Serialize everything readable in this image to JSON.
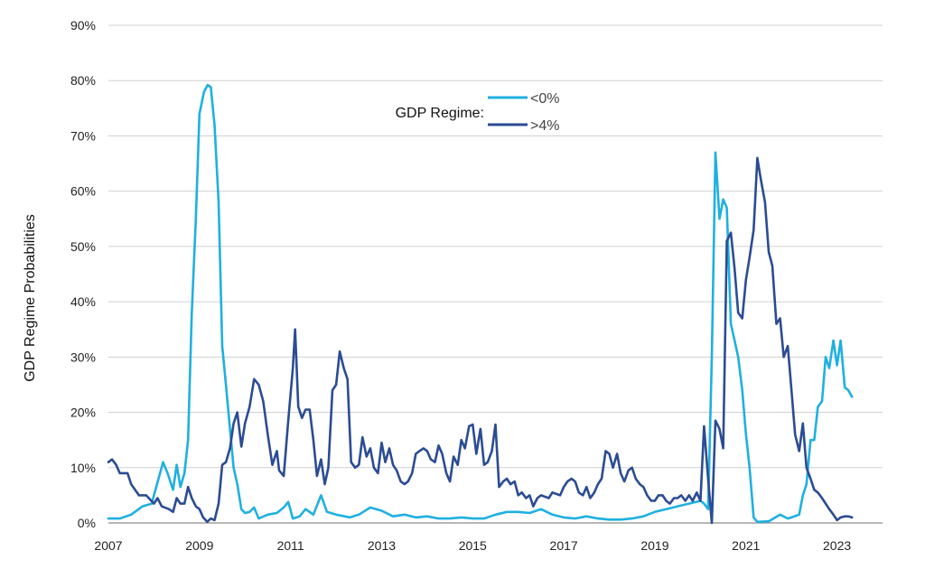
{
  "chart_data": {
    "type": "line",
    "title": "",
    "xlabel": "",
    "ylabel": "GDP Regime Probabilities",
    "xlim": [
      2007,
      2024
    ],
    "ylim": [
      0,
      90
    ],
    "x_ticks": [
      "2007",
      "2009",
      "2011",
      "2013",
      "2015",
      "2017",
      "2019",
      "2021",
      "2023"
    ],
    "y_ticks": [
      "0%",
      "10%",
      "20%",
      "30%",
      "40%",
      "50%",
      "60%",
      "70%",
      "80%",
      "90%"
    ],
    "grid": true,
    "legend": {
      "title": "GDP Regime:",
      "placement": "top-center"
    },
    "series": [
      {
        "name": "<0%",
        "color": "#1fb0e0",
        "points": [
          [
            2007.0,
            0.8
          ],
          [
            2007.25,
            0.8
          ],
          [
            2007.5,
            1.5
          ],
          [
            2007.75,
            3.0
          ],
          [
            2007.95,
            3.5
          ],
          [
            2008.1,
            8.0
          ],
          [
            2008.2,
            11.0
          ],
          [
            2008.3,
            9.0
          ],
          [
            2008.42,
            6.0
          ],
          [
            2008.5,
            10.5
          ],
          [
            2008.58,
            6.5
          ],
          [
            2008.67,
            9.0
          ],
          [
            2008.75,
            15.0
          ],
          [
            2008.83,
            38.0
          ],
          [
            2008.92,
            55.0
          ],
          [
            2009.0,
            74.0
          ],
          [
            2009.1,
            78.0
          ],
          [
            2009.18,
            79.2
          ],
          [
            2009.25,
            78.8
          ],
          [
            2009.33,
            72.0
          ],
          [
            2009.42,
            58.0
          ],
          [
            2009.5,
            32.0
          ],
          [
            2009.58,
            25.0
          ],
          [
            2009.67,
            17.0
          ],
          [
            2009.75,
            10.0
          ],
          [
            2009.83,
            7.0
          ],
          [
            2009.92,
            2.5
          ],
          [
            2010.0,
            1.8
          ],
          [
            2010.1,
            2.0
          ],
          [
            2010.2,
            2.8
          ],
          [
            2010.3,
            0.8
          ],
          [
            2010.5,
            1.5
          ],
          [
            2010.7,
            1.8
          ],
          [
            2010.85,
            2.8
          ],
          [
            2010.95,
            3.8
          ],
          [
            2011.05,
            0.8
          ],
          [
            2011.2,
            1.2
          ],
          [
            2011.33,
            2.5
          ],
          [
            2011.5,
            1.5
          ],
          [
            2011.67,
            5.0
          ],
          [
            2011.8,
            2.0
          ],
          [
            2012.0,
            1.5
          ],
          [
            2012.3,
            1.0
          ],
          [
            2012.5,
            1.5
          ],
          [
            2012.75,
            2.8
          ],
          [
            2013.0,
            2.2
          ],
          [
            2013.25,
            1.2
          ],
          [
            2013.5,
            1.5
          ],
          [
            2013.75,
            1.0
          ],
          [
            2014.0,
            1.2
          ],
          [
            2014.25,
            0.8
          ],
          [
            2014.5,
            0.8
          ],
          [
            2014.75,
            1.0
          ],
          [
            2015.0,
            0.8
          ],
          [
            2015.25,
            0.8
          ],
          [
            2015.5,
            1.5
          ],
          [
            2015.75,
            2.0
          ],
          [
            2016.0,
            2.0
          ],
          [
            2016.25,
            1.8
          ],
          [
            2016.5,
            2.5
          ],
          [
            2016.75,
            1.5
          ],
          [
            2017.0,
            1.0
          ],
          [
            2017.25,
            0.8
          ],
          [
            2017.5,
            1.2
          ],
          [
            2017.75,
            0.8
          ],
          [
            2018.0,
            0.6
          ],
          [
            2018.25,
            0.6
          ],
          [
            2018.5,
            0.8
          ],
          [
            2018.75,
            1.2
          ],
          [
            2019.0,
            2.0
          ],
          [
            2019.25,
            2.5
          ],
          [
            2019.5,
            3.0
          ],
          [
            2019.75,
            3.5
          ],
          [
            2020.0,
            4.0
          ],
          [
            2020.08,
            3.5
          ],
          [
            2020.17,
            2.5
          ],
          [
            2020.25,
            30.0
          ],
          [
            2020.33,
            67.0
          ],
          [
            2020.42,
            55.0
          ],
          [
            2020.5,
            58.5
          ],
          [
            2020.58,
            57.0
          ],
          [
            2020.67,
            36.0
          ],
          [
            2020.75,
            33.0
          ],
          [
            2020.83,
            30.0
          ],
          [
            2020.92,
            24.0
          ],
          [
            2021.0,
            16.0
          ],
          [
            2021.08,
            10.0
          ],
          [
            2021.17,
            1.0
          ],
          [
            2021.25,
            0.2
          ],
          [
            2021.5,
            0.3
          ],
          [
            2021.75,
            1.5
          ],
          [
            2021.92,
            0.8
          ],
          [
            2022.0,
            1.0
          ],
          [
            2022.17,
            1.5
          ],
          [
            2022.25,
            5.0
          ],
          [
            2022.33,
            7.0
          ],
          [
            2022.42,
            15.0
          ],
          [
            2022.5,
            15.0
          ],
          [
            2022.58,
            21.0
          ],
          [
            2022.67,
            22.0
          ],
          [
            2022.75,
            30.0
          ],
          [
            2022.83,
            28.0
          ],
          [
            2022.92,
            33.0
          ],
          [
            2023.0,
            28.5
          ],
          [
            2023.08,
            33.0
          ],
          [
            2023.17,
            24.5
          ],
          [
            2023.25,
            24.0
          ],
          [
            2023.33,
            22.8
          ]
        ]
      },
      {
        "name": ">4%",
        "color": "#2b4c93",
        "points": [
          [
            2007.0,
            11.0
          ],
          [
            2007.08,
            11.5
          ],
          [
            2007.17,
            10.5
          ],
          [
            2007.25,
            9.0
          ],
          [
            2007.42,
            9.0
          ],
          [
            2007.5,
            7.0
          ],
          [
            2007.67,
            5.0
          ],
          [
            2007.83,
            5.0
          ],
          [
            2008.0,
            3.5
          ],
          [
            2008.08,
            4.5
          ],
          [
            2008.17,
            3.0
          ],
          [
            2008.33,
            2.5
          ],
          [
            2008.42,
            2.0
          ],
          [
            2008.5,
            4.5
          ],
          [
            2008.58,
            3.5
          ],
          [
            2008.67,
            3.5
          ],
          [
            2008.75,
            6.5
          ],
          [
            2008.83,
            4.5
          ],
          [
            2008.92,
            3.0
          ],
          [
            2009.0,
            2.5
          ],
          [
            2009.08,
            1.0
          ],
          [
            2009.17,
            0.2
          ],
          [
            2009.25,
            0.8
          ],
          [
            2009.33,
            0.5
          ],
          [
            2009.42,
            3.5
          ],
          [
            2009.5,
            10.5
          ],
          [
            2009.58,
            11.0
          ],
          [
            2009.67,
            13.5
          ],
          [
            2009.75,
            18.0
          ],
          [
            2009.83,
            20.0
          ],
          [
            2009.92,
            13.8
          ],
          [
            2010.0,
            18.0
          ],
          [
            2010.1,
            21.0
          ],
          [
            2010.2,
            26.0
          ],
          [
            2010.3,
            25.0
          ],
          [
            2010.4,
            22.0
          ],
          [
            2010.5,
            16.0
          ],
          [
            2010.6,
            10.5
          ],
          [
            2010.7,
            13.0
          ],
          [
            2010.75,
            9.5
          ],
          [
            2010.85,
            8.5
          ],
          [
            2010.95,
            18.5
          ],
          [
            2011.05,
            28.0
          ],
          [
            2011.1,
            35.0
          ],
          [
            2011.17,
            21.0
          ],
          [
            2011.25,
            19.0
          ],
          [
            2011.33,
            20.5
          ],
          [
            2011.42,
            20.5
          ],
          [
            2011.5,
            15.0
          ],
          [
            2011.58,
            8.5
          ],
          [
            2011.67,
            11.5
          ],
          [
            2011.75,
            7.0
          ],
          [
            2011.83,
            10.0
          ],
          [
            2011.92,
            24.0
          ],
          [
            2012.0,
            25.0
          ],
          [
            2012.08,
            31.0
          ],
          [
            2012.17,
            28.0
          ],
          [
            2012.25,
            26.0
          ],
          [
            2012.33,
            11.0
          ],
          [
            2012.42,
            10.0
          ],
          [
            2012.5,
            10.5
          ],
          [
            2012.58,
            15.5
          ],
          [
            2012.67,
            12.0
          ],
          [
            2012.75,
            13.5
          ],
          [
            2012.83,
            10.0
          ],
          [
            2012.92,
            9.0
          ],
          [
            2013.0,
            14.5
          ],
          [
            2013.08,
            11.0
          ],
          [
            2013.17,
            13.5
          ],
          [
            2013.25,
            10.5
          ],
          [
            2013.33,
            9.5
          ],
          [
            2013.42,
            7.5
          ],
          [
            2013.5,
            7.0
          ],
          [
            2013.58,
            7.5
          ],
          [
            2013.67,
            9.0
          ],
          [
            2013.75,
            12.5
          ],
          [
            2013.83,
            13.0
          ],
          [
            2013.92,
            13.5
          ],
          [
            2014.0,
            13.0
          ],
          [
            2014.08,
            11.5
          ],
          [
            2014.17,
            11.0
          ],
          [
            2014.25,
            14.0
          ],
          [
            2014.33,
            12.5
          ],
          [
            2014.42,
            9.0
          ],
          [
            2014.5,
            7.5
          ],
          [
            2014.58,
            12.0
          ],
          [
            2014.67,
            10.5
          ],
          [
            2014.75,
            15.0
          ],
          [
            2014.83,
            13.5
          ],
          [
            2014.92,
            17.5
          ],
          [
            2015.0,
            17.8
          ],
          [
            2015.08,
            12.5
          ],
          [
            2015.17,
            17.0
          ],
          [
            2015.25,
            10.5
          ],
          [
            2015.33,
            11.0
          ],
          [
            2015.42,
            13.0
          ],
          [
            2015.5,
            17.8
          ],
          [
            2015.58,
            6.5
          ],
          [
            2015.67,
            7.5
          ],
          [
            2015.75,
            8.0
          ],
          [
            2015.83,
            7.0
          ],
          [
            2015.92,
            7.5
          ],
          [
            2016.0,
            5.0
          ],
          [
            2016.08,
            5.5
          ],
          [
            2016.17,
            4.5
          ],
          [
            2016.25,
            5.0
          ],
          [
            2016.33,
            3.0
          ],
          [
            2016.42,
            4.5
          ],
          [
            2016.5,
            5.0
          ],
          [
            2016.67,
            4.5
          ],
          [
            2016.75,
            5.5
          ],
          [
            2016.92,
            5.0
          ],
          [
            2017.0,
            6.5
          ],
          [
            2017.08,
            7.5
          ],
          [
            2017.17,
            8.0
          ],
          [
            2017.25,
            7.5
          ],
          [
            2017.33,
            5.5
          ],
          [
            2017.42,
            5.0
          ],
          [
            2017.5,
            6.5
          ],
          [
            2017.58,
            4.5
          ],
          [
            2017.67,
            5.5
          ],
          [
            2017.75,
            7.0
          ],
          [
            2017.83,
            8.0
          ],
          [
            2017.92,
            13.0
          ],
          [
            2018.0,
            12.5
          ],
          [
            2018.08,
            10.0
          ],
          [
            2018.17,
            12.5
          ],
          [
            2018.25,
            9.0
          ],
          [
            2018.33,
            7.5
          ],
          [
            2018.42,
            9.5
          ],
          [
            2018.5,
            10.0
          ],
          [
            2018.58,
            8.0
          ],
          [
            2018.67,
            7.0
          ],
          [
            2018.75,
            6.5
          ],
          [
            2018.83,
            5.0
          ],
          [
            2018.92,
            4.0
          ],
          [
            2019.0,
            4.0
          ],
          [
            2019.08,
            5.0
          ],
          [
            2019.17,
            5.0
          ],
          [
            2019.25,
            4.0
          ],
          [
            2019.33,
            3.5
          ],
          [
            2019.42,
            4.5
          ],
          [
            2019.5,
            4.5
          ],
          [
            2019.58,
            5.0
          ],
          [
            2019.67,
            4.0
          ],
          [
            2019.75,
            5.0
          ],
          [
            2019.83,
            4.0
          ],
          [
            2019.92,
            5.5
          ],
          [
            2020.0,
            4.0
          ],
          [
            2020.08,
            17.5
          ],
          [
            2020.17,
            8.0
          ],
          [
            2020.25,
            0.0
          ],
          [
            2020.33,
            18.5
          ],
          [
            2020.42,
            17.0
          ],
          [
            2020.5,
            13.5
          ],
          [
            2020.58,
            51.0
          ],
          [
            2020.67,
            52.5
          ],
          [
            2020.75,
            46.0
          ],
          [
            2020.83,
            38.0
          ],
          [
            2020.92,
            37.0
          ],
          [
            2021.0,
            44.0
          ],
          [
            2021.08,
            48.0
          ],
          [
            2021.17,
            53.0
          ],
          [
            2021.25,
            66.0
          ],
          [
            2021.33,
            62.0
          ],
          [
            2021.42,
            58.0
          ],
          [
            2021.5,
            49.0
          ],
          [
            2021.58,
            46.5
          ],
          [
            2021.67,
            36.0
          ],
          [
            2021.75,
            37.0
          ],
          [
            2021.83,
            30.0
          ],
          [
            2021.92,
            32.0
          ],
          [
            2022.0,
            24.0
          ],
          [
            2022.08,
            16.0
          ],
          [
            2022.17,
            13.0
          ],
          [
            2022.25,
            18.0
          ],
          [
            2022.33,
            10.0
          ],
          [
            2022.42,
            8.0
          ],
          [
            2022.5,
            6.0
          ],
          [
            2022.58,
            5.5
          ],
          [
            2022.67,
            4.5
          ],
          [
            2022.75,
            3.5
          ],
          [
            2022.83,
            2.5
          ],
          [
            2022.92,
            1.5
          ],
          [
            2023.0,
            0.5
          ],
          [
            2023.08,
            1.0
          ],
          [
            2023.17,
            1.2
          ],
          [
            2023.25,
            1.2
          ],
          [
            2023.33,
            1.0
          ]
        ]
      }
    ]
  }
}
